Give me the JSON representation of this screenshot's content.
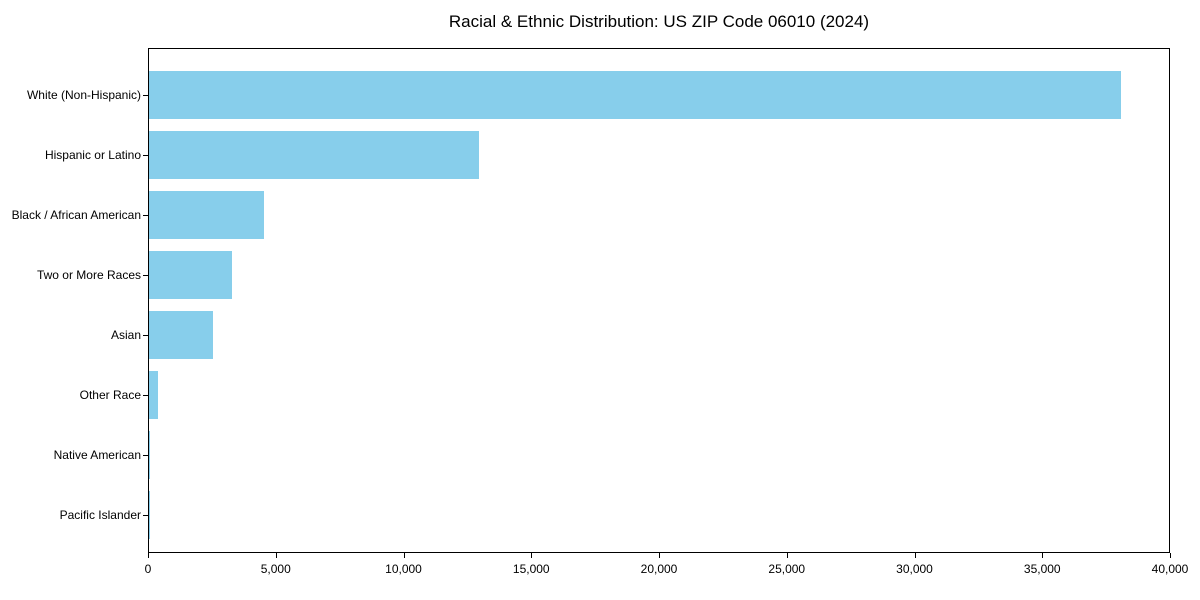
{
  "chart_data": {
    "type": "bar",
    "orientation": "horizontal",
    "title": "Racial & Ethnic Distribution: US ZIP Code 06010 (2024)",
    "categories": [
      "White (Non-Hispanic)",
      "Hispanic or Latino",
      "Black / African American",
      "Two or More Races",
      "Asian",
      "Other Race",
      "Native American",
      "Pacific Islander"
    ],
    "values": [
      38100,
      12950,
      4500,
      3250,
      2500,
      370,
      30,
      10
    ],
    "xlabel": "",
    "ylabel": "",
    "xlim": [
      0,
      40000
    ],
    "xticks": [
      0,
      5000,
      10000,
      15000,
      20000,
      25000,
      30000,
      35000,
      40000
    ],
    "xtick_labels": [
      "0",
      "5,000",
      "10,000",
      "15,000",
      "20,000",
      "25,000",
      "30,000",
      "35,000",
      "40,000"
    ],
    "bar_color": "#87ceeb",
    "axis_color": "#000000",
    "text_color": "#000000",
    "grid": false,
    "legend_position": "none"
  }
}
